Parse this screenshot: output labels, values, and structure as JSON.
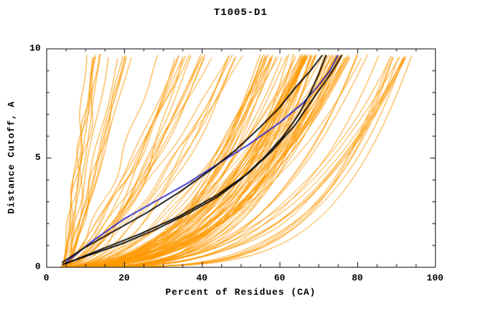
{
  "chart_data": {
    "type": "line",
    "title": "T1005-D1",
    "xlabel": "Percent of Residues (CA)",
    "ylabel": "Distance Cutoff, A",
    "xlim": [
      0,
      100
    ],
    "ylim": [
      0,
      10
    ],
    "xticks": [
      0,
      20,
      40,
      60,
      80,
      100
    ],
    "yticks": [
      0,
      5,
      10
    ],
    "x_minor_step": 5,
    "y_minor_step": 1,
    "grid": false,
    "legend": "none",
    "colors": {
      "ensemble": "#FF9900",
      "highlight": "#000000",
      "reference": "#2222CC",
      "frame": "#000000"
    },
    "series": [
      {
        "name": "reference-curve-blue",
        "color": "#2222CC",
        "width": 1.8,
        "points": [
          [
            5,
            0.2
          ],
          [
            12,
            1.2
          ],
          [
            20,
            2.2
          ],
          [
            28,
            3.0
          ],
          [
            36,
            3.8
          ],
          [
            44,
            4.7
          ],
          [
            52,
            5.6
          ],
          [
            60,
            6.6
          ],
          [
            66,
            7.5
          ],
          [
            70,
            8.3
          ],
          [
            73,
            9.0
          ],
          [
            75,
            9.7
          ]
        ]
      },
      {
        "name": "highlight-curve-black-1",
        "color": "#000000",
        "width": 1.8,
        "points": [
          [
            4,
            0.1
          ],
          [
            12,
            0.6
          ],
          [
            20,
            1.1
          ],
          [
            28,
            1.7
          ],
          [
            36,
            2.4
          ],
          [
            44,
            3.2
          ],
          [
            50,
            4.0
          ],
          [
            56,
            5.0
          ],
          [
            61,
            6.0
          ],
          [
            65,
            7.0
          ],
          [
            68,
            8.0
          ],
          [
            70,
            8.8
          ],
          [
            72,
            9.7
          ]
        ]
      },
      {
        "name": "highlight-curve-black-2",
        "color": "#000000",
        "width": 1.8,
        "points": [
          [
            5,
            0.15
          ],
          [
            14,
            0.8
          ],
          [
            24,
            1.5
          ],
          [
            34,
            2.3
          ],
          [
            44,
            3.3
          ],
          [
            52,
            4.3
          ],
          [
            58,
            5.3
          ],
          [
            64,
            6.5
          ],
          [
            69,
            7.8
          ],
          [
            73,
            8.8
          ],
          [
            76,
            9.7
          ]
        ]
      },
      {
        "name": "highlight-curve-black-3",
        "color": "#000000",
        "width": 1.8,
        "points": [
          [
            4,
            0.2
          ],
          [
            10,
            0.9
          ],
          [
            18,
            1.7
          ],
          [
            26,
            2.5
          ],
          [
            34,
            3.4
          ],
          [
            42,
            4.4
          ],
          [
            49,
            5.4
          ],
          [
            55,
            6.4
          ],
          [
            60,
            7.3
          ],
          [
            64,
            8.2
          ],
          [
            68,
            9.0
          ],
          [
            71,
            9.7
          ]
        ]
      }
    ],
    "ensemble": {
      "name": "model-pool-curves-orange",
      "color": "#FF9900",
      "width": 1,
      "seed": 20,
      "origin_x": [
        3.5,
        6.0
      ],
      "ymax": [
        9.55,
        9.75
      ],
      "groups": [
        {
          "count": 14,
          "x_end": [
            9,
            24
          ],
          "exp": [
            0.85,
            1.3
          ]
        },
        {
          "count": 22,
          "x_end": [
            26,
            52
          ],
          "exp": [
            1.2,
            2.2
          ]
        },
        {
          "count": 48,
          "x_end": [
            55,
            78
          ],
          "exp": [
            1.8,
            3.2
          ]
        },
        {
          "count": 30,
          "x_end": [
            62,
            84
          ],
          "exp": [
            2.4,
            4.0
          ]
        },
        {
          "count": 14,
          "x_end": [
            84,
            94
          ],
          "exp": [
            2.8,
            4.8
          ]
        }
      ]
    }
  }
}
